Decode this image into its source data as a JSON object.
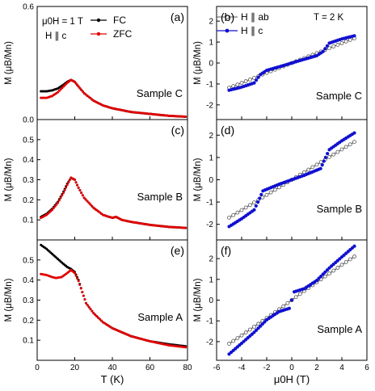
{
  "chart_data": {
    "type": "scatter",
    "xlabel_left": "T (K)",
    "xlabel_right": "μ0H (T)",
    "ylabel": "M (μB/Mn)",
    "left_conditions": [
      "μ0H = 1 T",
      "H ∥ c"
    ],
    "right_conditions": [
      "T = 2 K"
    ],
    "series_names": {
      "fc": "FC",
      "zfc": "ZFC",
      "hab": "H ∥ ab",
      "hc": "H ∥ c"
    },
    "colors": {
      "fc": "#000000",
      "zfc": "#e00000",
      "hab": "#555555",
      "hc": "#1010d0"
    },
    "left_x_ticks": [
      "0",
      "20",
      "40",
      "60",
      "80"
    ],
    "right_x_ticks": [
      "-6",
      "-4",
      "-2",
      "0",
      "2",
      "4",
      "6"
    ],
    "left_xlim": [
      0,
      80
    ],
    "right_xlim": [
      -6,
      6
    ],
    "left_panels": [
      {
        "label": "(a)",
        "sample": "Sample C",
        "ylim": [
          0.0,
          0.6
        ],
        "ticks": [
          "0.0",
          "0.6"
        ],
        "fc": [
          [
            2,
            0.15
          ],
          [
            5,
            0.15
          ],
          [
            8,
            0.155
          ],
          [
            11,
            0.165
          ],
          [
            14,
            0.185
          ],
          [
            16,
            0.2
          ],
          [
            18,
            0.21
          ],
          [
            20,
            0.2
          ],
          [
            22,
            0.175
          ],
          [
            25,
            0.14
          ],
          [
            30,
            0.1
          ],
          [
            35,
            0.075
          ],
          [
            40,
            0.06
          ],
          [
            50,
            0.04
          ],
          [
            60,
            0.03
          ],
          [
            70,
            0.02
          ],
          [
            79,
            0.015
          ]
        ],
        "zfc": [
          [
            2,
            0.115
          ],
          [
            5,
            0.115
          ],
          [
            8,
            0.125
          ],
          [
            11,
            0.145
          ],
          [
            14,
            0.175
          ],
          [
            16,
            0.195
          ],
          [
            18,
            0.21
          ],
          [
            20,
            0.2
          ],
          [
            22,
            0.175
          ],
          [
            25,
            0.14
          ],
          [
            30,
            0.1
          ],
          [
            35,
            0.075
          ],
          [
            40,
            0.06
          ],
          [
            50,
            0.04
          ],
          [
            60,
            0.03
          ],
          [
            70,
            0.02
          ],
          [
            79,
            0.015
          ]
        ]
      },
      {
        "label": "(c)",
        "sample": "Sample B",
        "ylim": [
          0.0,
          0.6
        ],
        "ticks": [
          "0.1",
          "0.2",
          "0.3",
          "0.4",
          "0.5"
        ],
        "fc": [
          [
            2,
            0.115
          ],
          [
            5,
            0.13
          ],
          [
            8,
            0.155
          ],
          [
            11,
            0.19
          ],
          [
            14,
            0.24
          ],
          [
            16,
            0.28
          ],
          [
            18,
            0.31
          ],
          [
            20,
            0.3
          ],
          [
            22,
            0.26
          ],
          [
            25,
            0.21
          ],
          [
            30,
            0.16
          ],
          [
            35,
            0.125
          ],
          [
            40,
            0.11
          ],
          [
            42,
            0.115
          ],
          [
            45,
            0.1
          ],
          [
            50,
            0.09
          ],
          [
            60,
            0.075
          ],
          [
            70,
            0.065
          ],
          [
            79,
            0.06
          ]
        ],
        "zfc": [
          [
            2,
            0.11
          ],
          [
            5,
            0.125
          ],
          [
            8,
            0.15
          ],
          [
            11,
            0.185
          ],
          [
            14,
            0.235
          ],
          [
            16,
            0.275
          ],
          [
            18,
            0.31
          ],
          [
            20,
            0.3
          ],
          [
            22,
            0.26
          ],
          [
            25,
            0.21
          ],
          [
            30,
            0.16
          ],
          [
            35,
            0.125
          ],
          [
            40,
            0.11
          ],
          [
            42,
            0.115
          ],
          [
            45,
            0.1
          ],
          [
            50,
            0.09
          ],
          [
            60,
            0.075
          ],
          [
            70,
            0.065
          ],
          [
            79,
            0.06
          ]
        ]
      },
      {
        "label": "(e)",
        "sample": "Sample A",
        "ylim": [
          0.0,
          0.6
        ],
        "ticks": [
          "0.1",
          "0.2",
          "0.3",
          "0.4",
          "0.5"
        ],
        "fc": [
          [
            2,
            0.575
          ],
          [
            5,
            0.555
          ],
          [
            8,
            0.53
          ],
          [
            11,
            0.505
          ],
          [
            14,
            0.48
          ],
          [
            16,
            0.465
          ],
          [
            18,
            0.455
          ],
          [
            20,
            0.44
          ],
          [
            22,
            0.4
          ],
          [
            24,
            0.34
          ],
          [
            26,
            0.285
          ],
          [
            30,
            0.235
          ],
          [
            35,
            0.19
          ],
          [
            40,
            0.16
          ],
          [
            50,
            0.12
          ],
          [
            60,
            0.095
          ],
          [
            70,
            0.08
          ],
          [
            79,
            0.07
          ]
        ],
        "zfc": [
          [
            2,
            0.43
          ],
          [
            5,
            0.425
          ],
          [
            8,
            0.415
          ],
          [
            10,
            0.41
          ],
          [
            13,
            0.415
          ],
          [
            16,
            0.435
          ],
          [
            18,
            0.45
          ],
          [
            20,
            0.435
          ],
          [
            22,
            0.395
          ],
          [
            24,
            0.34
          ],
          [
            26,
            0.285
          ],
          [
            30,
            0.235
          ],
          [
            35,
            0.19
          ],
          [
            40,
            0.16
          ],
          [
            50,
            0.12
          ],
          [
            60,
            0.095
          ],
          [
            70,
            0.075
          ],
          [
            79,
            0.065
          ]
        ]
      }
    ],
    "right_panels": [
      {
        "label": "(b)",
        "sample": "Sample C",
        "ylim": [
          -2.7,
          2.7
        ],
        "ticks": [
          "-2",
          "-1",
          "0",
          "1",
          "2"
        ],
        "hab": [
          [
            -5,
            -1.18
          ],
          [
            -4,
            -0.95
          ],
          [
            -3,
            -0.71
          ],
          [
            -2,
            -0.47
          ],
          [
            -1,
            -0.24
          ],
          [
            0,
            0
          ],
          [
            1,
            0.24
          ],
          [
            2,
            0.47
          ],
          [
            3,
            0.71
          ],
          [
            4,
            0.95
          ],
          [
            5,
            1.18
          ]
        ],
        "hc": [
          [
            -5,
            -1.3
          ],
          [
            -4,
            -1.15
          ],
          [
            -3,
            -0.95
          ],
          [
            -2.5,
            -0.55
          ],
          [
            -2,
            -0.35
          ],
          [
            -1,
            -0.18
          ],
          [
            0,
            0
          ],
          [
            1,
            0.18
          ],
          [
            2,
            0.35
          ],
          [
            2.5,
            0.55
          ],
          [
            3,
            0.95
          ],
          [
            4,
            1.15
          ],
          [
            5,
            1.3
          ]
        ]
      },
      {
        "label": "(d)",
        "sample": "Sample B",
        "ylim": [
          -2.7,
          2.7
        ],
        "ticks": [
          "-2",
          "-1",
          "0",
          "1",
          "2"
        ],
        "hab": [
          [
            -5,
            -1.7
          ],
          [
            -4,
            -1.36
          ],
          [
            -3,
            -1.02
          ],
          [
            -2,
            -0.68
          ],
          [
            -1,
            -0.34
          ],
          [
            0,
            0
          ],
          [
            1,
            0.34
          ],
          [
            2,
            0.68
          ],
          [
            3,
            1.02
          ],
          [
            4,
            1.36
          ],
          [
            5,
            1.7
          ]
        ],
        "hc": [
          [
            -5,
            -2.1
          ],
          [
            -4,
            -1.75
          ],
          [
            -3,
            -1.35
          ],
          [
            -2.7,
            -1.0
          ],
          [
            -2.3,
            -0.5
          ],
          [
            -1,
            -0.2
          ],
          [
            0,
            0
          ],
          [
            1,
            0.2
          ],
          [
            2.3,
            0.5
          ],
          [
            2.7,
            1.0
          ],
          [
            3,
            1.35
          ],
          [
            4,
            1.75
          ],
          [
            5,
            2.1
          ]
        ]
      },
      {
        "label": "(f)",
        "sample": "Sample A",
        "ylim": [
          -2.9,
          2.9
        ],
        "ticks": [
          "-2",
          "-1",
          "0",
          "1",
          "2"
        ],
        "hab": [
          [
            -5,
            -2.1
          ],
          [
            -4,
            -1.7
          ],
          [
            -3,
            -1.28
          ],
          [
            -2,
            -0.86
          ],
          [
            -1,
            -0.44
          ],
          [
            0,
            0
          ],
          [
            1,
            0.44
          ],
          [
            2,
            0.86
          ],
          [
            3,
            1.28
          ],
          [
            4,
            1.7
          ],
          [
            5,
            2.1
          ]
        ],
        "hc": [
          [
            -5,
            -2.6
          ],
          [
            -4,
            -2.08
          ],
          [
            -3,
            -1.55
          ],
          [
            -2,
            -0.95
          ],
          [
            -1,
            -0.55
          ],
          [
            -0.2,
            -0.4
          ],
          [
            0,
            0
          ],
          [
            0.2,
            0.4
          ],
          [
            1,
            0.55
          ],
          [
            2,
            0.95
          ],
          [
            3,
            1.55
          ],
          [
            4,
            2.08
          ],
          [
            5,
            2.6
          ]
        ]
      }
    ]
  }
}
